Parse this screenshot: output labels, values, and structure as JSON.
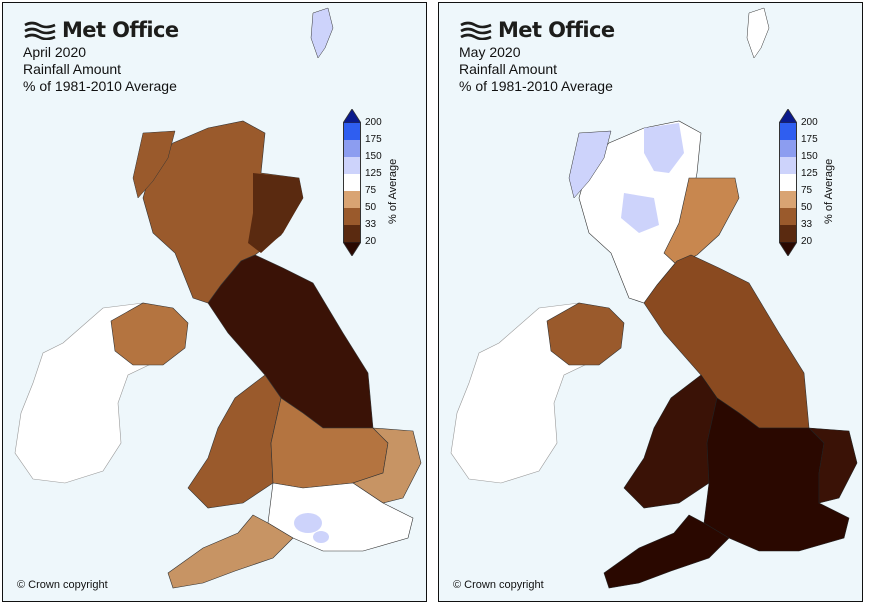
{
  "brand": "Met Office",
  "copyright": "© Crown copyright",
  "legend": {
    "title": "% of Average",
    "ticks": [
      "200",
      "175",
      "150",
      "125",
      "75",
      "50",
      "33",
      "20"
    ],
    "colors": {
      "top_arrow": "#0a1a8c",
      "175_200": "#2f5ef0",
      "150_175": "#8c9df0",
      "125_150": "#cdd3fb",
      "75_125": "#ffffff",
      "50_75": "#d9a473",
      "33_50": "#9a5a2c",
      "20_33": "#5a2a10",
      "bottom_arrow": "#2a0800"
    }
  },
  "maps": [
    {
      "month": "April 2020",
      "metric": "Rainfall Amount",
      "baseline": "% of 1981-2010 Average",
      "colors": {
        "ireland": "#ffffff",
        "northern_ireland": "#b47440",
        "scotland": "#9a5a2c",
        "scotland_east": "#5a2a10",
        "northern_england": "#3a1206",
        "wales": "#9a5a2c",
        "midlands": "#b47440",
        "east_anglia": "#c79464",
        "south_england": "#ffffff",
        "south_west": "#c79464"
      }
    },
    {
      "month": "May 2020",
      "metric": "Rainfall Amount",
      "baseline": "% of 1981-2010 Average",
      "colors": {
        "ireland": "#ffffff",
        "northern_ireland": "#9a5a2c",
        "scotland_west": "#ffffff",
        "scotland_highlands": "#cdd3fb",
        "scotland_east": "#c8874f",
        "northern_england": "#8a4a20",
        "wales": "#3a1206",
        "england_south": "#2a0800",
        "east_anglia": "#3a1206",
        "south_west": "#2a0800"
      }
    }
  ]
}
